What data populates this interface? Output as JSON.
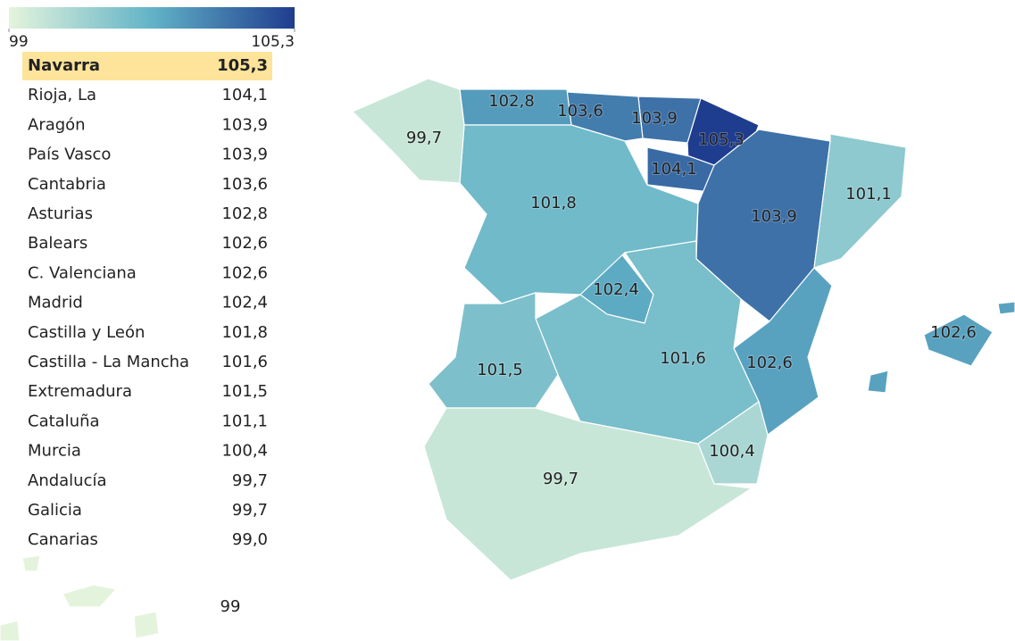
{
  "chart_data": {
    "type": "choropleth",
    "categories": [
      "Navarra",
      "Rioja, La",
      "Aragón",
      "País Vasco",
      "Cantabria",
      "Asturias",
      "Balears",
      "C. Valenciana",
      "Madrid",
      "Castilla y León",
      "Castilla - La Mancha",
      "Extremadura",
      "Cataluña",
      "Murcia",
      "Andalucía",
      "Galicia",
      "Canarias"
    ],
    "values": [
      105.3,
      104.1,
      103.9,
      103.9,
      103.6,
      102.8,
      102.6,
      102.6,
      102.4,
      101.8,
      101.6,
      101.5,
      101.1,
      100.4,
      99.7,
      99.7,
      99.0
    ],
    "value_labels": [
      "105,3",
      "104,1",
      "103,9",
      "103,9",
      "103,6",
      "102,8",
      "102,6",
      "102,6",
      "102,4",
      "101,8",
      "101,6",
      "101,5",
      "101,1",
      "100,4",
      "99,7",
      "99,7",
      "99,0"
    ],
    "map_labels": [
      "105,3",
      "104,1",
      "103,9",
      "103,9",
      "103,6",
      "102,8",
      "102,6",
      "102,6",
      "102,4",
      "101,8",
      "101,6",
      "101,5",
      "101,1",
      "100,4",
      "99,7",
      "99,7",
      "99"
    ],
    "colorbar": {
      "range": [
        99,
        105.3
      ],
      "ticks": [
        99,
        {
          "value": 105.3,
          "label": "105,3"
        }
      ],
      "colors": [
        "#e4f4dc",
        "#62b3c8",
        "#1f3d8e"
      ]
    }
  }
}
